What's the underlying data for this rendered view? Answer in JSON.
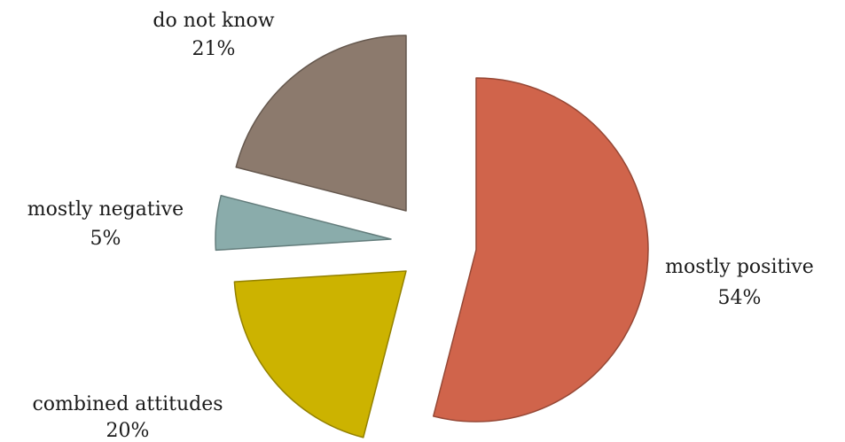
{
  "chart_data": {
    "type": "pie",
    "exploded": true,
    "start_angle_deg": 0,
    "direction": "clockwise",
    "slices": [
      {
        "label": "mostly positive",
        "value": 54,
        "display": "54%",
        "color": "#d0644b"
      },
      {
        "label": "combined attitudes",
        "value": 20,
        "display": "20%",
        "color": "#ccb300"
      },
      {
        "label": "mostly negative",
        "value": 5,
        "display": "5%",
        "color": "#8aacab"
      },
      {
        "label": "do not know",
        "value": 21,
        "display": "21%",
        "color": "#8c7a6d"
      }
    ]
  }
}
